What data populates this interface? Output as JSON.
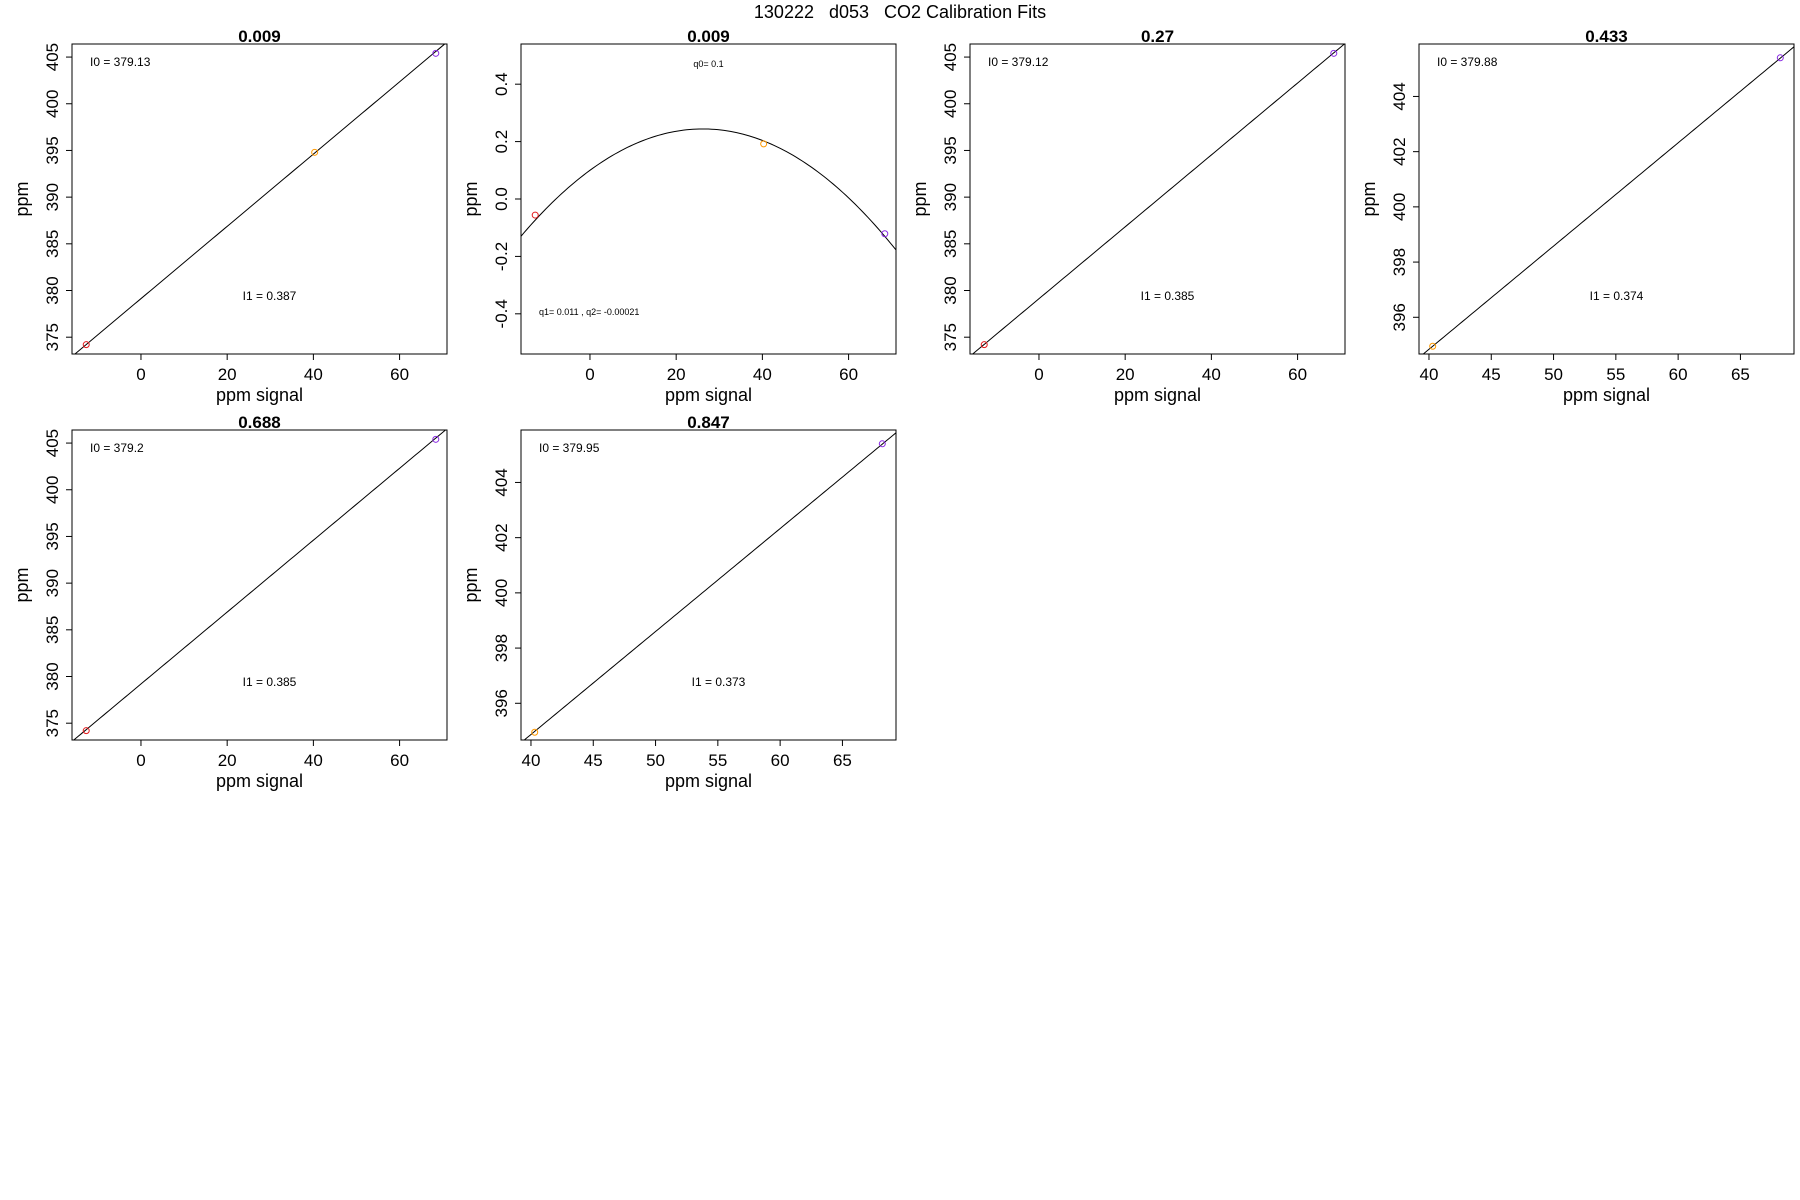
{
  "title": "130222   d053   CO2 Calibration Fits",
  "chart_data": [
    {
      "type": "line",
      "fit": "linear",
      "title": "0.009",
      "xlabel": "ppm signal",
      "ylabel": "ppm",
      "xlim": [
        -16,
        71
      ],
      "ylim": [
        373.2,
        406.4
      ],
      "xticks": [
        0,
        20,
        40,
        60
      ],
      "yticks": [
        375,
        380,
        385,
        390,
        395,
        400,
        405
      ],
      "intercept": 379.13,
      "slope": 0.387,
      "points": [
        {
          "x": -12.7,
          "y": 374.2,
          "color": "#e41a1c"
        },
        {
          "x": 40.3,
          "y": 394.8,
          "color": "#ff9900"
        },
        {
          "x": 68.4,
          "y": 405.4,
          "color": "#8a2be2"
        }
      ],
      "annotations": {
        "top": "I0 =  379.13",
        "bottom": "I1 =  0.387"
      }
    },
    {
      "type": "line",
      "fit": "quadratic",
      "title": "0.009",
      "xlabel": "ppm signal",
      "ylabel": "ppm",
      "xlim": [
        -16,
        71
      ],
      "ylim": [
        -0.54,
        0.54
      ],
      "xticks": [
        0,
        20,
        40,
        60
      ],
      "yticks": [
        -0.4,
        -0.2,
        0.0,
        0.2,
        0.4
      ],
      "curve": {
        "q0": 0.1,
        "q1": 0.011,
        "q2": -0.00021
      },
      "points": [
        {
          "x": -12.7,
          "y": -0.056,
          "color": "#e41a1c"
        },
        {
          "x": 40.3,
          "y": 0.192,
          "color": "#ff9900"
        },
        {
          "x": 68.4,
          "y": -0.121,
          "color": "#8a2be2"
        }
      ],
      "annotations": {
        "top": "q0= 0.1",
        "bottom": "q1= 0.011 , q2= -0.00021"
      }
    },
    {
      "type": "line",
      "fit": "linear",
      "title": "0.27",
      "xlabel": "ppm signal",
      "ylabel": "ppm",
      "xlim": [
        -16,
        71
      ],
      "ylim": [
        373.2,
        406.4
      ],
      "xticks": [
        0,
        20,
        40,
        60
      ],
      "yticks": [
        375,
        380,
        385,
        390,
        395,
        400,
        405
      ],
      "intercept": 379.12,
      "slope": 0.385,
      "points": [
        {
          "x": -12.7,
          "y": 374.2,
          "color": "#e41a1c"
        },
        {
          "x": 68.4,
          "y": 405.4,
          "color": "#8a2be2"
        }
      ],
      "annotations": {
        "top": "I0 =  379.12",
        "bottom": "I1 =  0.385"
      }
    },
    {
      "type": "line",
      "fit": "linear",
      "title": "0.433",
      "xlabel": "ppm signal",
      "ylabel": "ppm",
      "xlim": [
        39.2,
        69.3
      ],
      "ylim": [
        394.67,
        405.9
      ],
      "xticks": [
        40,
        45,
        50,
        55,
        60,
        65
      ],
      "yticks": [
        396,
        398,
        400,
        402,
        404
      ],
      "intercept": 379.88,
      "slope": 0.374,
      "points": [
        {
          "x": 40.3,
          "y": 394.95,
          "color": "#ff9900"
        },
        {
          "x": 68.2,
          "y": 405.4,
          "color": "#8a2be2"
        }
      ],
      "annotations": {
        "top": "I0 =  379.88",
        "bottom": "I1 =  0.374"
      }
    },
    {
      "type": "line",
      "fit": "linear",
      "title": "0.688",
      "xlabel": "ppm signal",
      "ylabel": "ppm",
      "xlim": [
        -16,
        71
      ],
      "ylim": [
        373.2,
        406.4
      ],
      "xticks": [
        0,
        20,
        40,
        60
      ],
      "yticks": [
        375,
        380,
        385,
        390,
        395,
        400,
        405
      ],
      "intercept": 379.2,
      "slope": 0.385,
      "points": [
        {
          "x": -12.7,
          "y": 374.2,
          "color": "#e41a1c"
        },
        {
          "x": 68.4,
          "y": 405.4,
          "color": "#8a2be2"
        }
      ],
      "annotations": {
        "top": "I0 =  379.2",
        "bottom": "I1 =  0.385"
      }
    },
    {
      "type": "line",
      "fit": "linear",
      "title": "0.847",
      "xlabel": "ppm signal",
      "ylabel": "ppm",
      "xlim": [
        39.2,
        69.3
      ],
      "ylim": [
        394.67,
        405.9
      ],
      "xticks": [
        40,
        45,
        50,
        55,
        60,
        65
      ],
      "yticks": [
        396,
        398,
        400,
        402,
        404
      ],
      "intercept": 379.95,
      "slope": 0.373,
      "points": [
        {
          "x": 40.3,
          "y": 394.95,
          "color": "#ff9900"
        },
        {
          "x": 68.2,
          "y": 405.4,
          "color": "#8a2be2"
        }
      ],
      "annotations": {
        "top": "I0 =  379.95",
        "bottom": "I1 =  0.373"
      }
    }
  ]
}
